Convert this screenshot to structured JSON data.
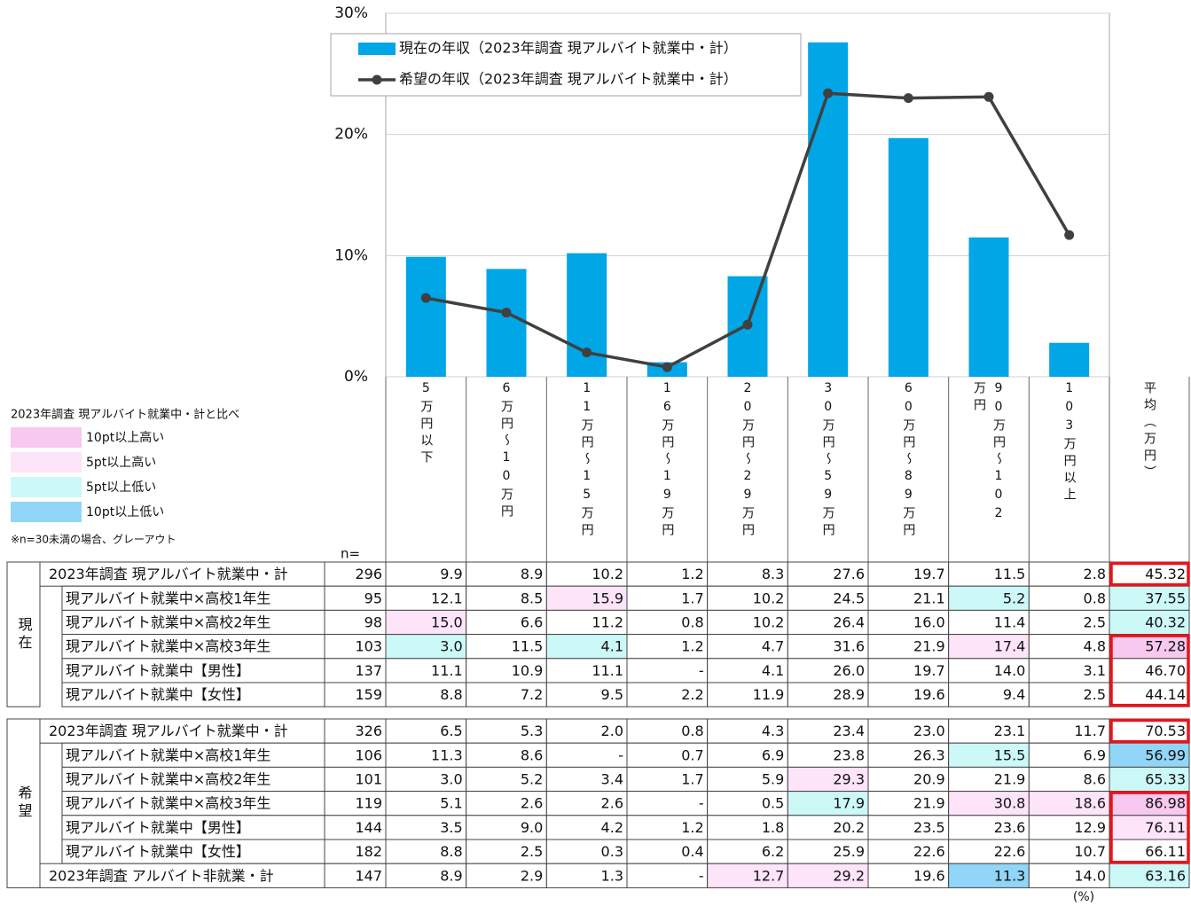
{
  "chart_data": {
    "type": "bar",
    "categories": [
      "5万円以下",
      "6万円～10万円",
      "11万円～15万円",
      "16万円～19万円",
      "20万円～29万円",
      "30万円～59万円",
      "60万円～89万円",
      "90万円～102万円",
      "103万円以上"
    ],
    "series": [
      {
        "name": "現在の年収（2023年調査 現アルバイト就業中・計）",
        "type": "bar",
        "color": "#00a6e6",
        "values": [
          9.9,
          8.9,
          10.2,
          1.2,
          8.3,
          27.6,
          19.7,
          11.5,
          2.8
        ]
      },
      {
        "name": "希望の年収（2023年調査 現アルバイト就業中・計）",
        "type": "line",
        "color": "#404040",
        "values": [
          6.5,
          5.3,
          2.0,
          0.8,
          4.3,
          23.4,
          23.0,
          23.1,
          11.7
        ]
      }
    ],
    "ylim": [
      0,
      30
    ],
    "yticks": [
      {
        "value": 0,
        "label": "0%"
      },
      {
        "value": 10,
        "label": "10%"
      },
      {
        "value": 20,
        "label": "20%"
      },
      {
        "value": 30,
        "label": "30%"
      }
    ],
    "grid": true,
    "legend": "top-left"
  },
  "key": {
    "title": "2023年調査 現アルバイト就業中・計と比べ",
    "items": [
      {
        "label": "10pt以上高い",
        "color": "#f7c8f0"
      },
      {
        "label": "5pt以上高い",
        "color": "#fde4f9"
      },
      {
        "label": "5pt以上低い",
        "color": "#ccf8f7"
      },
      {
        "label": "10pt以上低い",
        "color": "#91d6f8"
      }
    ],
    "note": "※n=30未満の場合、グレーアウト"
  },
  "table": {
    "n_label": "n=",
    "avg_header": "平均（万円）",
    "unit": "(%)",
    "sections": [
      {
        "label": "現在",
        "rows": [
          {
            "label": "2023年調査 現アルバイト就業中・計",
            "indent": false,
            "boxed": true,
            "n": "296",
            "cells": [
              "9.9",
              "8.9",
              "10.2",
              "1.2",
              "8.3",
              "27.6",
              "19.7",
              "11.5",
              "2.8"
            ],
            "avg": "45.32",
            "fills": [
              null,
              null,
              null,
              null,
              null,
              null,
              null,
              null,
              null,
              null
            ]
          },
          {
            "label": "現アルバイト就業中×高校1年生",
            "indent": true,
            "boxed": false,
            "n": "95",
            "cells": [
              "12.1",
              "8.5",
              "15.9",
              "1.7",
              "10.2",
              "24.5",
              "21.1",
              "5.2",
              "0.8"
            ],
            "avg": "37.55",
            "fills": [
              null,
              null,
              "#fde4f9",
              null,
              null,
              null,
              null,
              "#ccf8f7",
              null,
              "#ccf8f7"
            ]
          },
          {
            "label": "現アルバイト就業中×高校2年生",
            "indent": true,
            "boxed": false,
            "n": "98",
            "cells": [
              "15.0",
              "6.6",
              "11.2",
              "0.8",
              "10.2",
              "26.4",
              "16.0",
              "11.4",
              "2.5"
            ],
            "avg": "40.32",
            "fills": [
              "#fde4f9",
              null,
              null,
              null,
              null,
              null,
              null,
              null,
              null,
              "#ccf8f7"
            ]
          },
          {
            "label": "現アルバイト就業中×高校3年生",
            "indent": true,
            "boxed": true,
            "n": "103",
            "cells": [
              "3.0",
              "11.5",
              "4.1",
              "1.2",
              "4.7",
              "31.6",
              "21.9",
              "17.4",
              "4.8"
            ],
            "avg": "57.28",
            "fills": [
              "#ccf8f7",
              null,
              "#ccf8f7",
              null,
              null,
              null,
              null,
              "#fde4f9",
              null,
              "#f7c8f0"
            ]
          },
          {
            "label": "現アルバイト就業中【男性】",
            "indent": true,
            "boxed": true,
            "n": "137",
            "cells": [
              "11.1",
              "10.9",
              "11.1",
              "-",
              "4.1",
              "26.0",
              "19.7",
              "14.0",
              "3.1"
            ],
            "avg": "46.70",
            "fills": [
              null,
              null,
              null,
              null,
              null,
              null,
              null,
              null,
              null,
              null
            ]
          },
          {
            "label": "現アルバイト就業中【女性】",
            "indent": true,
            "boxed": true,
            "n": "159",
            "cells": [
              "8.8",
              "7.2",
              "9.5",
              "2.2",
              "11.9",
              "28.9",
              "19.6",
              "9.4",
              "2.5"
            ],
            "avg": "44.14",
            "fills": [
              null,
              null,
              null,
              null,
              null,
              null,
              null,
              null,
              null,
              null
            ]
          }
        ]
      },
      {
        "label": "希望",
        "rows": [
          {
            "label": "2023年調査 現アルバイト就業中・計",
            "indent": false,
            "boxed": true,
            "n": "326",
            "cells": [
              "6.5",
              "5.3",
              "2.0",
              "0.8",
              "4.3",
              "23.4",
              "23.0",
              "23.1",
              "11.7"
            ],
            "avg": "70.53",
            "fills": [
              null,
              null,
              null,
              null,
              null,
              null,
              null,
              null,
              null,
              null
            ]
          },
          {
            "label": "現アルバイト就業中×高校1年生",
            "indent": true,
            "boxed": false,
            "n": "106",
            "cells": [
              "11.3",
              "8.6",
              "-",
              "0.7",
              "6.9",
              "23.8",
              "26.3",
              "15.5",
              "6.9"
            ],
            "avg": "56.99",
            "fills": [
              null,
              null,
              null,
              null,
              null,
              null,
              null,
              "#ccf8f7",
              null,
              "#91d6f8"
            ]
          },
          {
            "label": "現アルバイト就業中×高校2年生",
            "indent": true,
            "boxed": false,
            "n": "101",
            "cells": [
              "3.0",
              "5.2",
              "3.4",
              "1.7",
              "5.9",
              "29.3",
              "20.9",
              "21.9",
              "8.6"
            ],
            "avg": "65.33",
            "fills": [
              null,
              null,
              null,
              null,
              null,
              "#fde4f9",
              null,
              null,
              null,
              "#ccf8f7"
            ]
          },
          {
            "label": "現アルバイト就業中×高校3年生",
            "indent": true,
            "boxed": true,
            "n": "119",
            "cells": [
              "5.1",
              "2.6",
              "2.6",
              "-",
              "0.5",
              "17.9",
              "21.9",
              "30.8",
              "18.6"
            ],
            "avg": "86.98",
            "fills": [
              null,
              null,
              null,
              null,
              null,
              "#ccf8f7",
              null,
              "#fde4f9",
              "#fde4f9",
              "#f7c8f0"
            ]
          },
          {
            "label": "現アルバイト就業中【男性】",
            "indent": true,
            "boxed": true,
            "n": "144",
            "cells": [
              "3.5",
              "9.0",
              "4.2",
              "1.2",
              "1.8",
              "20.2",
              "23.5",
              "23.6",
              "12.9"
            ],
            "avg": "76.11",
            "fills": [
              null,
              null,
              null,
              null,
              null,
              null,
              null,
              null,
              null,
              "#fde4f9"
            ]
          },
          {
            "label": "現アルバイト就業中【女性】",
            "indent": true,
            "boxed": true,
            "n": "182",
            "cells": [
              "8.8",
              "2.5",
              "0.3",
              "0.4",
              "6.2",
              "25.9",
              "22.6",
              "22.6",
              "10.7"
            ],
            "avg": "66.11",
            "fills": [
              null,
              null,
              null,
              null,
              null,
              null,
              null,
              null,
              null,
              null
            ]
          },
          {
            "label": "2023年調査 アルバイト非就業・計",
            "indent": false,
            "boxed": false,
            "n": "147",
            "cells": [
              "8.9",
              "2.9",
              "1.3",
              "-",
              "12.7",
              "29.2",
              "19.6",
              "11.3",
              "14.0"
            ],
            "avg": "63.16",
            "fills": [
              null,
              null,
              null,
              null,
              "#fde4f9",
              "#fde4f9",
              null,
              "#91d6f8",
              null,
              "#ccf8f7"
            ]
          }
        ]
      }
    ]
  }
}
